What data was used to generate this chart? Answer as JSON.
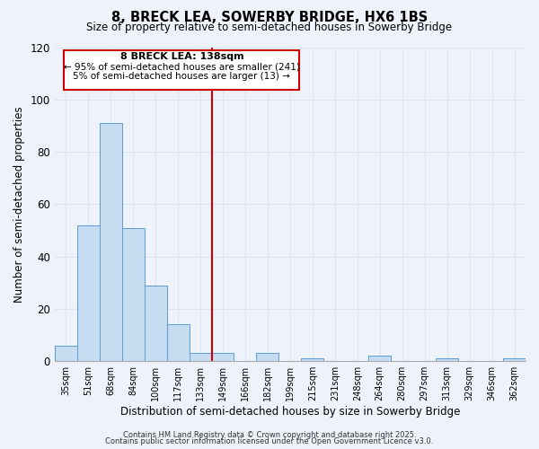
{
  "title": "8, BRECK LEA, SOWERBY BRIDGE, HX6 1BS",
  "subtitle": "Size of property relative to semi-detached houses in Sowerby Bridge",
  "xlabel": "Distribution of semi-detached houses by size in Sowerby Bridge",
  "ylabel": "Number of semi-detached properties",
  "bar_labels": [
    "35sqm",
    "51sqm",
    "68sqm",
    "84sqm",
    "100sqm",
    "117sqm",
    "133sqm",
    "149sqm",
    "166sqm",
    "182sqm",
    "199sqm",
    "215sqm",
    "231sqm",
    "248sqm",
    "264sqm",
    "280sqm",
    "297sqm",
    "313sqm",
    "329sqm",
    "346sqm",
    "362sqm"
  ],
  "bar_values": [
    6,
    52,
    91,
    51,
    29,
    14,
    3,
    3,
    0,
    3,
    0,
    1,
    0,
    0,
    2,
    0,
    0,
    1,
    0,
    0,
    1
  ],
  "bar_color": "#c6dcf0",
  "bar_edge_color": "#5b9bd5",
  "ylim": [
    0,
    120
  ],
  "yticks": [
    0,
    20,
    40,
    60,
    80,
    100,
    120
  ],
  "vline_x_index": 6.5,
  "vline_color": "#cc0000",
  "annotation_title": "8 BRECK LEA: 138sqm",
  "annotation_line1": "← 95% of semi-detached houses are smaller (241)",
  "annotation_line2": "5% of semi-detached houses are larger (13) →",
  "bg_color": "#eef2fa",
  "grid_color": "#dde5f5",
  "footer1": "Contains HM Land Registry data © Crown copyright and database right 2025.",
  "footer2": "Contains public sector information licensed under the Open Government Licence v3.0."
}
